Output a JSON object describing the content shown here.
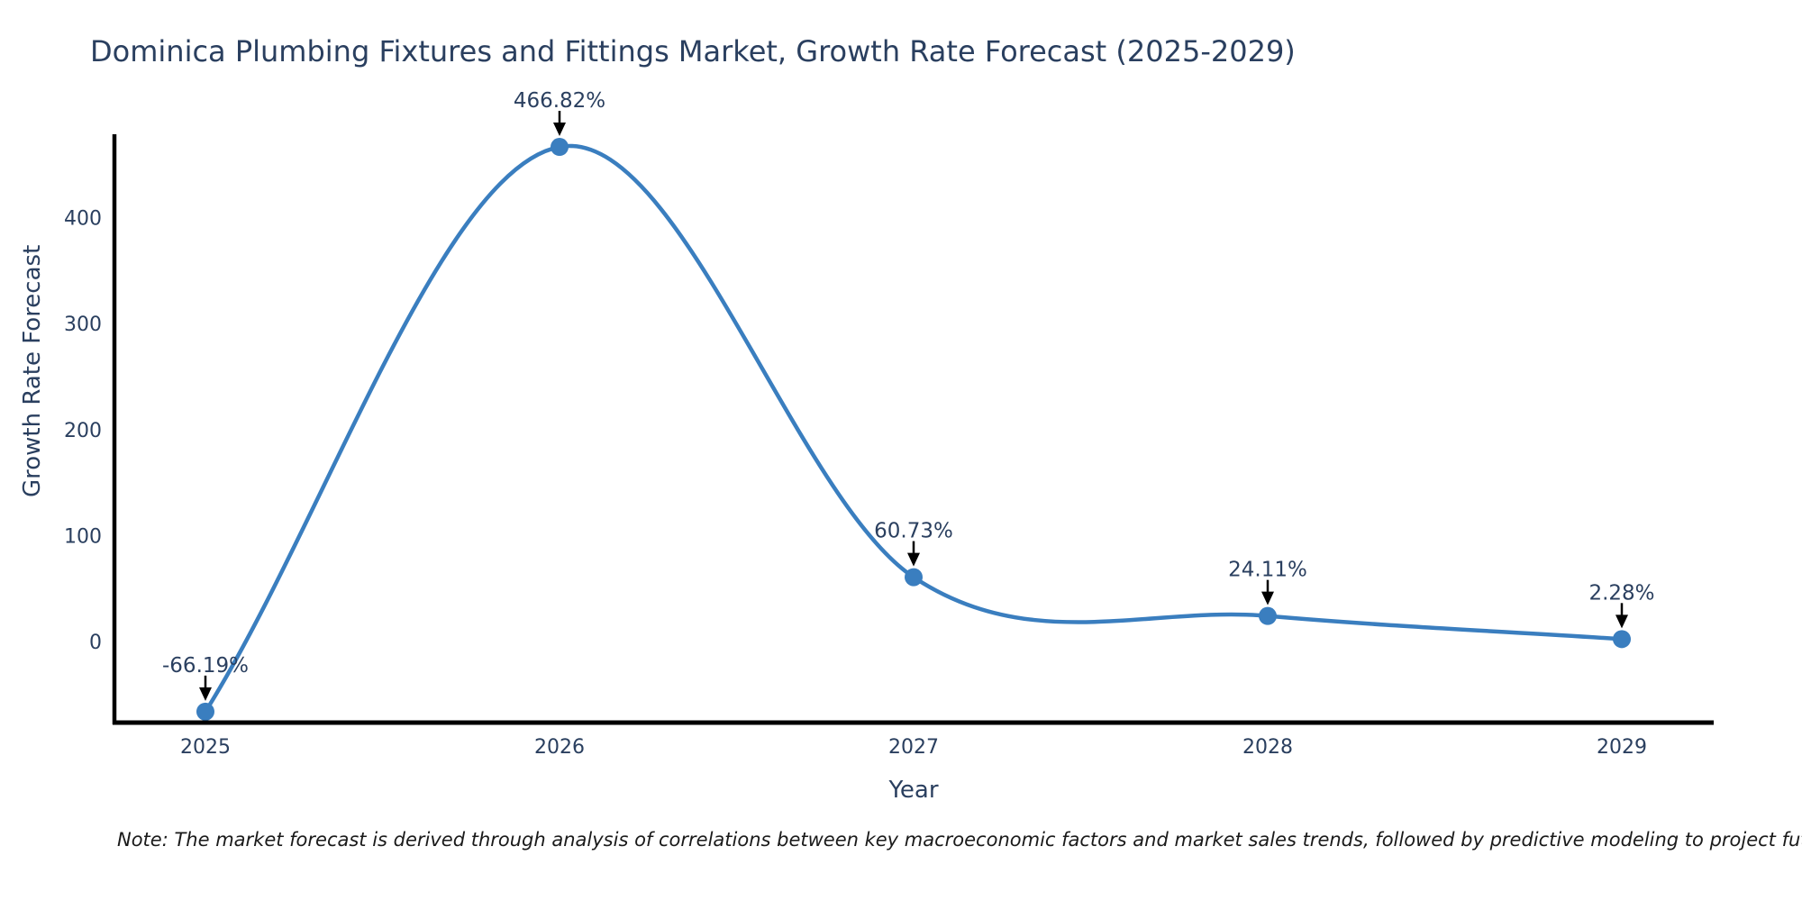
{
  "title": "Dominica Plumbing Fixtures and Fittings Market, Growth Rate Forecast (2025-2029)",
  "note": "Note: The market forecast is derived through analysis of correlations between key macroeconomic factors and market sales trends, followed by predictive modeling to project future sales.",
  "chart_data": {
    "type": "line",
    "title": "Dominica Plumbing Fixtures and Fittings Market, Growth Rate Forecast (2025-2029)",
    "xlabel": "Year",
    "ylabel": "Growth Rate Forecast",
    "x": [
      2025,
      2026,
      2027,
      2028,
      2029
    ],
    "series": [
      {
        "name": "Growth Rate Forecast",
        "values": [
          -66.19,
          466.82,
          60.73,
          24.11,
          2.28
        ]
      }
    ],
    "point_labels": [
      "-66.19%",
      "466.82%",
      "60.73%",
      "24.11%",
      "2.28%"
    ],
    "yticks": [
      0,
      100,
      200,
      300,
      400
    ],
    "xlim": [
      2024.74,
      2029.26
    ],
    "ylim": [
      -76.5,
      478.8
    ],
    "line_shape": "spline",
    "grid": false,
    "legend_position": "none",
    "colors": {
      "line": "#3a7ebf",
      "marker": "#3a7ebf",
      "text": "#2a3f5f",
      "axis": "#000000",
      "arrow": "#000000",
      "background": "#ffffff"
    }
  }
}
